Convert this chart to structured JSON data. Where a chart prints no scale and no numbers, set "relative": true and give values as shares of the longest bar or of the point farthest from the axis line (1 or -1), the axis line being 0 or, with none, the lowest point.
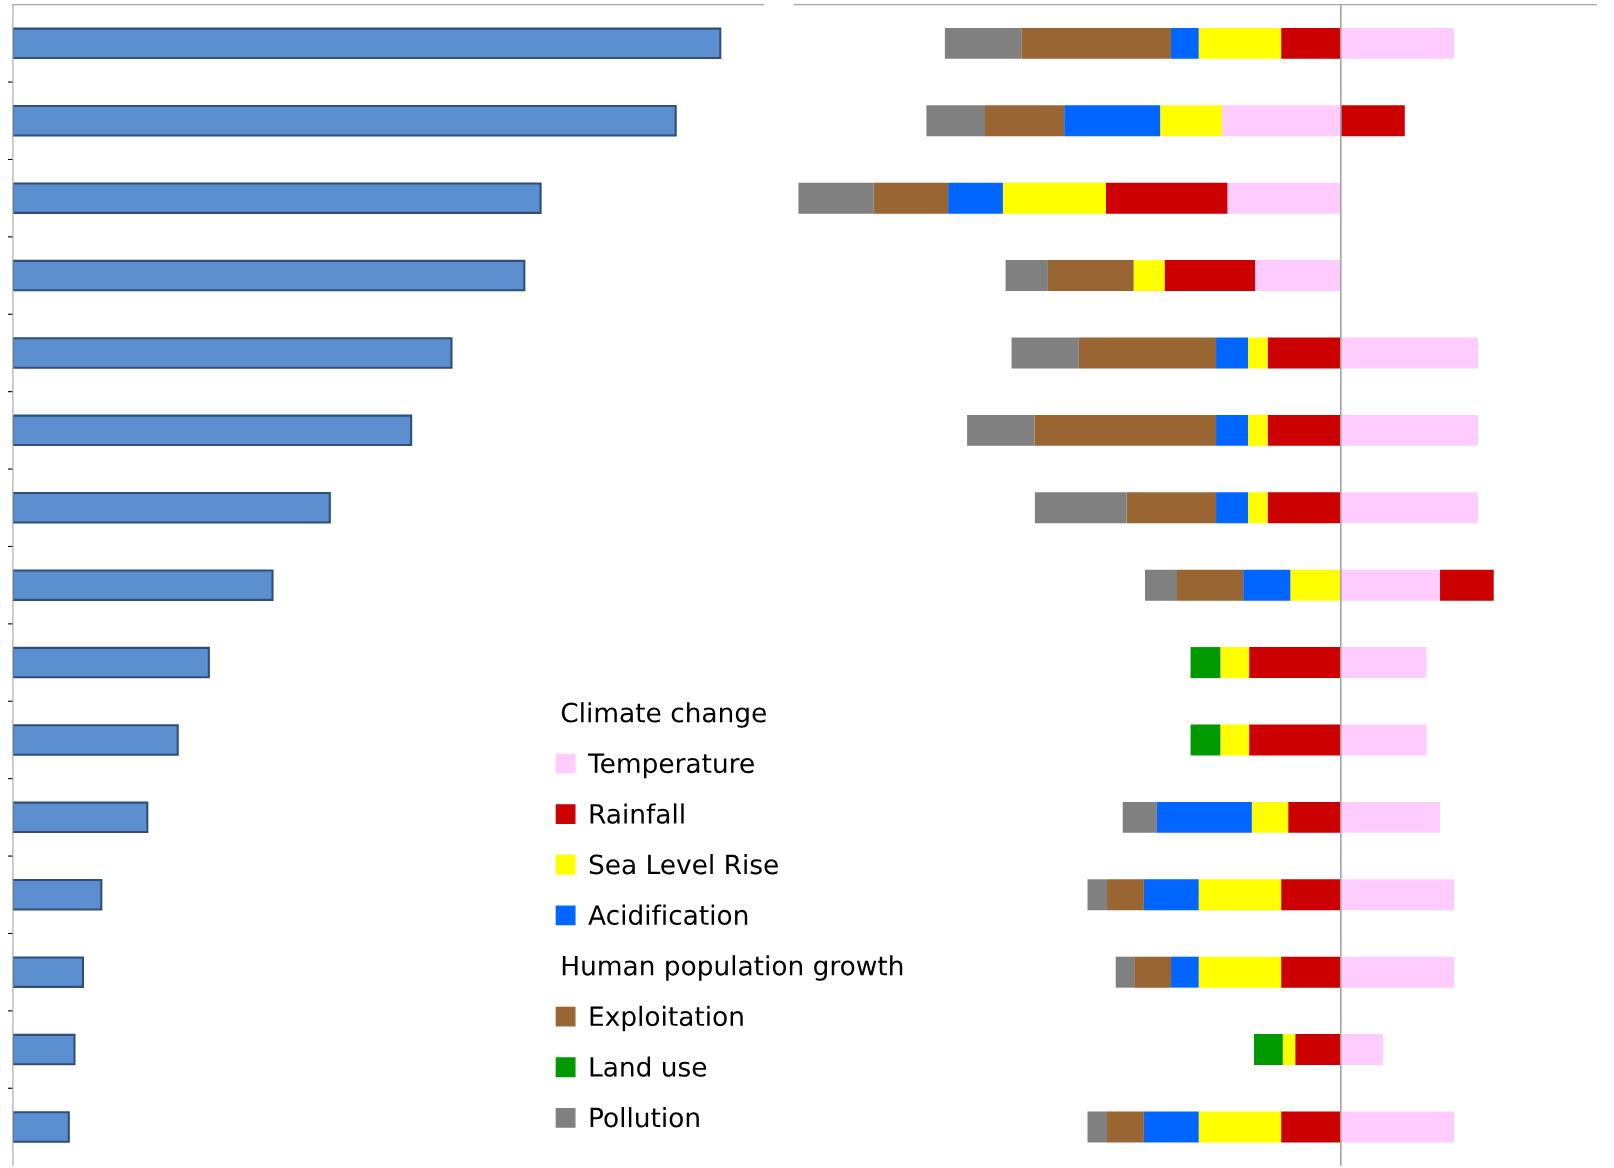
{
  "chart_data": [
    {
      "type": "bar",
      "orientation": "horizontal",
      "relative": true,
      "categories": [
        null,
        null,
        null,
        null,
        null,
        null,
        null,
        null,
        null,
        null,
        null,
        null,
        null,
        null,
        null
      ],
      "color": "#5b8fd0",
      "values": [
        1,
        0.937,
        0.746,
        0.723,
        0.62,
        0.563,
        0.448,
        0.367,
        0.277,
        0.233,
        0.19,
        0.125,
        0.099,
        0.087,
        0.079
      ],
      "grid": false,
      "legend": false
    },
    {
      "type": "bar",
      "orientation": "horizontal",
      "relative": true,
      "stacked": true,
      "categories": [
        null,
        null,
        null,
        null,
        null,
        null,
        null,
        null,
        null,
        null,
        null,
        null,
        null,
        null,
        null
      ],
      "grid": false,
      "legend": "bottom left",
      "annotations": [
        "Climate change",
        "Human population growth"
      ],
      "series": [
        {
          "name": "Temperature",
          "color": "#ffccff",
          "values": [
            0.209,
            -0.219,
            -0.209,
            -0.158,
            0.253,
            0.253,
            0.253,
            0.183,
            0.158,
            0.158,
            0.183,
            0.209,
            0.209,
            0.078,
            0.209
          ]
        },
        {
          "name": "Rainfall",
          "color": "#cc0000",
          "values": [
            -0.11,
            0.118,
            -0.224,
            -0.167,
            -0.135,
            -0.135,
            -0.135,
            0.099,
            -0.169,
            -0.169,
            -0.097,
            -0.11,
            -0.11,
            -0.084,
            -0.11
          ]
        },
        {
          "name": "Sea Level Rise",
          "color": "#ffff00",
          "values": [
            -0.152,
            -0.114,
            -0.19,
            -0.057,
            -0.036,
            -0.036,
            -0.036,
            -0.093,
            -0.053,
            -0.053,
            -0.067,
            -0.152,
            -0.152,
            -0.023,
            -0.152
          ]
        },
        {
          "name": "Acidification",
          "color": "#0066ff",
          "values": [
            -0.051,
            -0.177,
            -0.101,
            0,
            -0.059,
            -0.059,
            -0.059,
            -0.087,
            0,
            0,
            -0.175,
            -0.101,
            -0.051,
            0,
            -0.101
          ]
        },
        {
          "name": "Exploitation",
          "color": "#996633",
          "values": [
            -0.276,
            -0.146,
            -0.137,
            -0.158,
            -0.253,
            -0.335,
            -0.165,
            -0.122,
            0,
            0,
            0,
            -0.068,
            -0.068,
            0,
            -0.068
          ]
        },
        {
          "name": "Land use",
          "color": "#009900",
          "values": [
            0,
            0,
            0,
            0,
            0,
            0,
            0,
            0,
            -0.055,
            -0.055,
            0,
            0,
            0,
            -0.053,
            0
          ]
        },
        {
          "name": "Pollution",
          "color": "#808080",
          "values": [
            -0.141,
            -0.108,
            -0.139,
            -0.078,
            -0.124,
            -0.124,
            -0.169,
            -0.059,
            0,
            0,
            -0.063,
            -0.036,
            -0.034,
            0,
            -0.036
          ]
        }
      ]
    }
  ]
}
